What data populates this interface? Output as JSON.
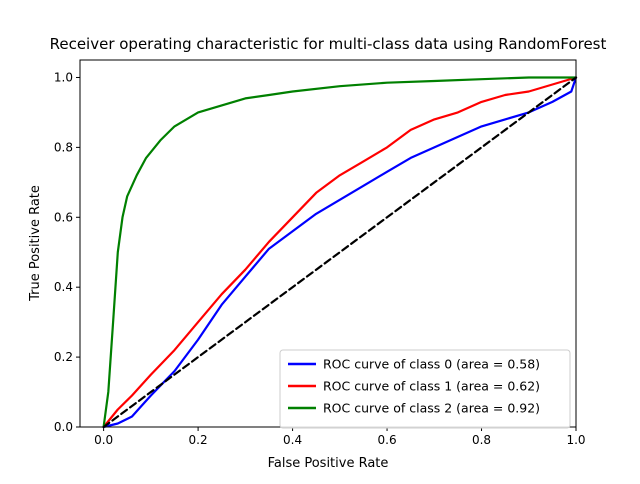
{
  "chart_data": {
    "type": "line",
    "title": "Receiver operating characteristic for multi-class data using RandomForest",
    "xlabel": "False Positive Rate",
    "ylabel": "True Positive Rate",
    "xlim": [
      -0.05,
      1.0
    ],
    "ylim": [
      0.0,
      1.05
    ],
    "xticks": [
      0.0,
      0.2,
      0.4,
      0.6,
      0.8,
      1.0
    ],
    "yticks": [
      0.0,
      0.2,
      0.4,
      0.6,
      0.8,
      1.0
    ],
    "xtick_labels": [
      "0.0",
      "0.2",
      "0.4",
      "0.6",
      "0.8",
      "1.0"
    ],
    "ytick_labels": [
      "0.0",
      "0.2",
      "0.4",
      "0.6",
      "0.8",
      "1.0"
    ],
    "grid": false,
    "legend_position": "lower-right",
    "series": [
      {
        "name": "ROC curve of class 0 (area = 0.58)",
        "color": "#0000ff",
        "x": [
          0.0,
          0.03,
          0.06,
          0.08,
          0.1,
          0.15,
          0.2,
          0.25,
          0.3,
          0.35,
          0.4,
          0.45,
          0.5,
          0.55,
          0.6,
          0.65,
          0.7,
          0.75,
          0.8,
          0.85,
          0.9,
          0.95,
          0.99,
          1.0
        ],
        "y": [
          0.0,
          0.01,
          0.03,
          0.06,
          0.09,
          0.16,
          0.25,
          0.35,
          0.43,
          0.51,
          0.56,
          0.61,
          0.65,
          0.69,
          0.73,
          0.77,
          0.8,
          0.83,
          0.86,
          0.88,
          0.9,
          0.93,
          0.96,
          1.0
        ]
      },
      {
        "name": "ROC curve of class 1 (area = 0.62)",
        "color": "#ff0000",
        "x": [
          0.0,
          0.03,
          0.06,
          0.1,
          0.15,
          0.2,
          0.25,
          0.3,
          0.35,
          0.4,
          0.45,
          0.5,
          0.55,
          0.6,
          0.65,
          0.7,
          0.75,
          0.8,
          0.85,
          0.9,
          0.95,
          1.0
        ],
        "y": [
          0.0,
          0.05,
          0.09,
          0.15,
          0.22,
          0.3,
          0.38,
          0.45,
          0.53,
          0.6,
          0.67,
          0.72,
          0.76,
          0.8,
          0.85,
          0.88,
          0.9,
          0.93,
          0.95,
          0.96,
          0.98,
          1.0
        ]
      },
      {
        "name": "ROC curve of class 2 (area = 0.92)",
        "color": "#008000",
        "x": [
          0.0,
          0.01,
          0.02,
          0.03,
          0.04,
          0.05,
          0.07,
          0.09,
          0.12,
          0.15,
          0.2,
          0.25,
          0.3,
          0.35,
          0.4,
          0.5,
          0.6,
          0.7,
          0.8,
          0.9,
          1.0
        ],
        "y": [
          0.0,
          0.1,
          0.3,
          0.5,
          0.6,
          0.66,
          0.72,
          0.77,
          0.82,
          0.86,
          0.9,
          0.92,
          0.94,
          0.95,
          0.96,
          0.975,
          0.985,
          0.99,
          0.995,
          1.0,
          1.0
        ]
      },
      {
        "color": "#000000",
        "dashed": true,
        "x": [
          0.0,
          1.0
        ],
        "y": [
          0.0,
          1.0
        ]
      }
    ]
  }
}
